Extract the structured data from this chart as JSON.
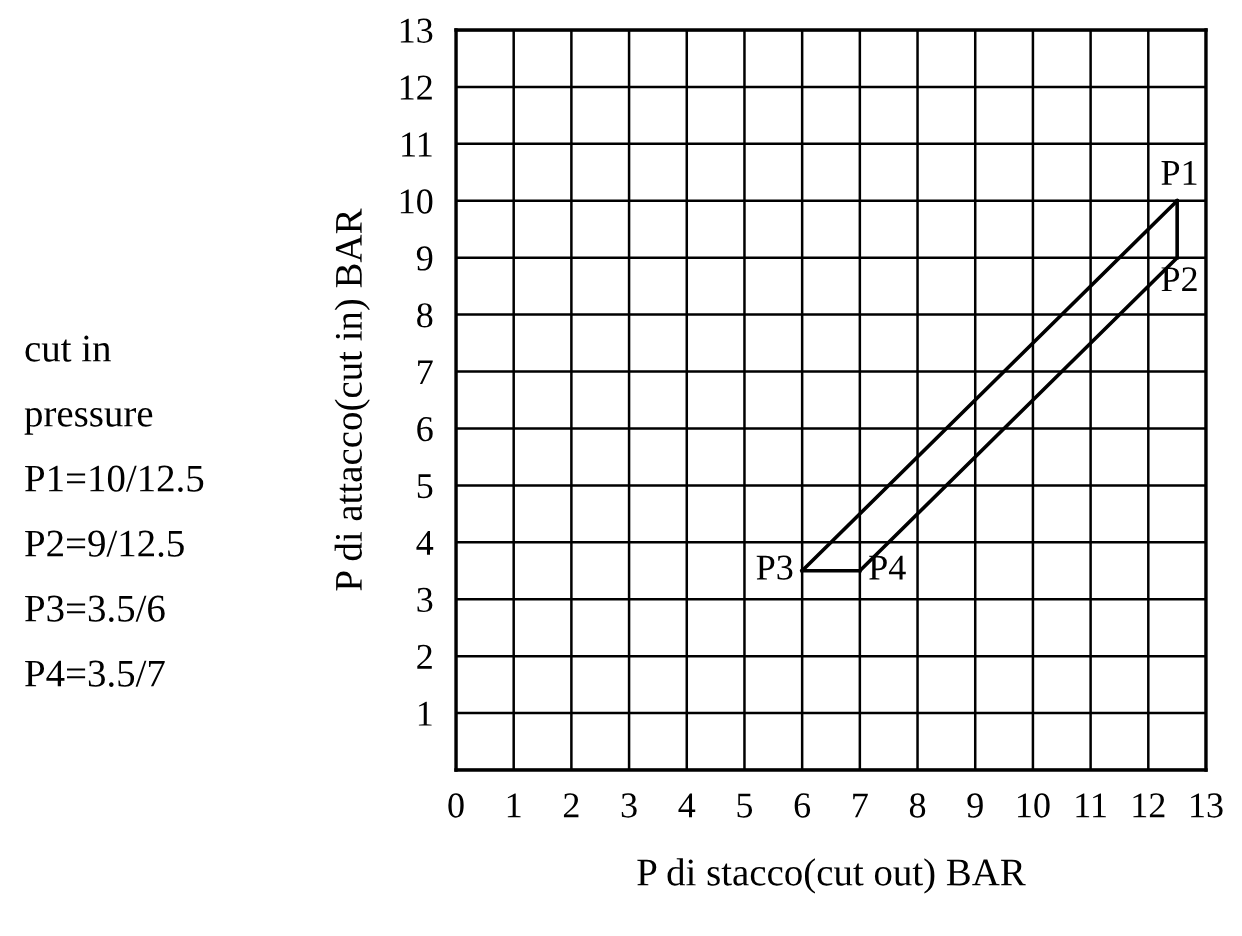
{
  "chart_data": {
    "type": "line",
    "xlabel": "P di stacco(cut out) BAR",
    "ylabel": "P di attacco(cut in) BAR",
    "series": [
      {
        "x": [
          6,
          12.5
        ],
        "values": [
          3.5,
          10
        ],
        "color": "#000000"
      },
      {
        "x": [
          7,
          12.5
        ],
        "values": [
          3.5,
          9
        ],
        "color": "#000000"
      },
      {
        "x": [
          6,
          7
        ],
        "values": [
          3.5,
          3.5
        ],
        "color": "#000000"
      },
      {
        "x": [
          12.5,
          12.5
        ],
        "values": [
          9,
          10
        ],
        "color": "#000000"
      }
    ],
    "xlim": [
      0,
      13
    ],
    "ylim": [
      0,
      13
    ],
    "xticks": [
      0,
      1,
      2,
      3,
      4,
      5,
      6,
      7,
      8,
      9,
      10,
      11,
      12,
      13
    ],
    "yticks": [
      {
        "value": 0,
        "label": null
      },
      1,
      2,
      3,
      4,
      5,
      6,
      7,
      8,
      9,
      10,
      11,
      12,
      13
    ],
    "grid": true,
    "marker": "none",
    "line_style": "solid",
    "annotations": [
      {
        "text": "P1",
        "x": 12.5,
        "y": 10
      },
      {
        "text": "P2",
        "x": 12.5,
        "y": 9
      },
      {
        "text": "P3",
        "x": 6,
        "y": 3.5
      },
      {
        "text": "P4",
        "x": 7,
        "y": 3.5
      },
      "cut in",
      "pressure",
      "P1=10/12.5",
      "P2=9/12.5",
      "P3=3.5/6",
      "P4=3.5/7"
    ]
  }
}
